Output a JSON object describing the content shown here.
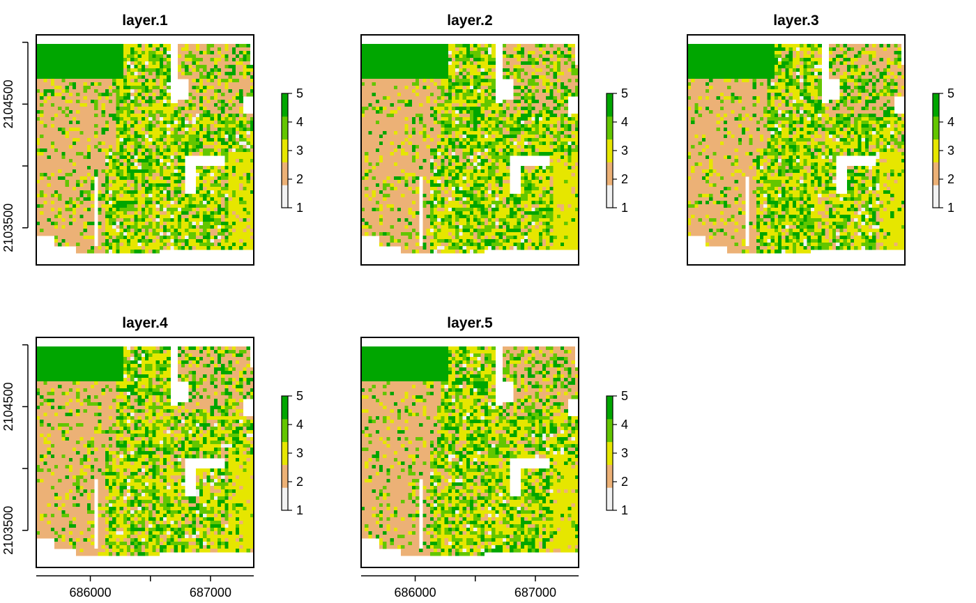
{
  "chart_data": {
    "type": "heatmap",
    "description_of_values": "categorical raster classes 1–5",
    "palette": {
      "1": "#f2f2f2",
      "2": "#ecb176",
      "3": "#e6e600",
      "4": "#63c600",
      "5": "#00a600"
    },
    "xlim": [
      685550,
      687360
    ],
    "ylim": [
      2103200,
      2105060
    ],
    "x_ticks": [
      686000,
      687000
    ],
    "x_tick_labels": [
      "686000",
      "687000"
    ],
    "y_ticks": [
      2103500,
      2104000,
      2104500,
      2105000
    ],
    "y_tick_labels": [
      "2103500",
      "2104500"
    ],
    "legend": {
      "range": [
        1,
        5
      ],
      "ticks": [
        1,
        2,
        3,
        4,
        5
      ],
      "tick_labels": [
        "1",
        "2",
        "3",
        "4",
        "5"
      ]
    },
    "panels": [
      {
        "title": "layer.1",
        "seed": 11
      },
      {
        "title": "layer.2",
        "seed": 23
      },
      {
        "title": "layer.3",
        "seed": 37
      },
      {
        "title": "layer.4",
        "seed": 41
      },
      {
        "title": "layer.5",
        "seed": 53
      }
    ]
  }
}
